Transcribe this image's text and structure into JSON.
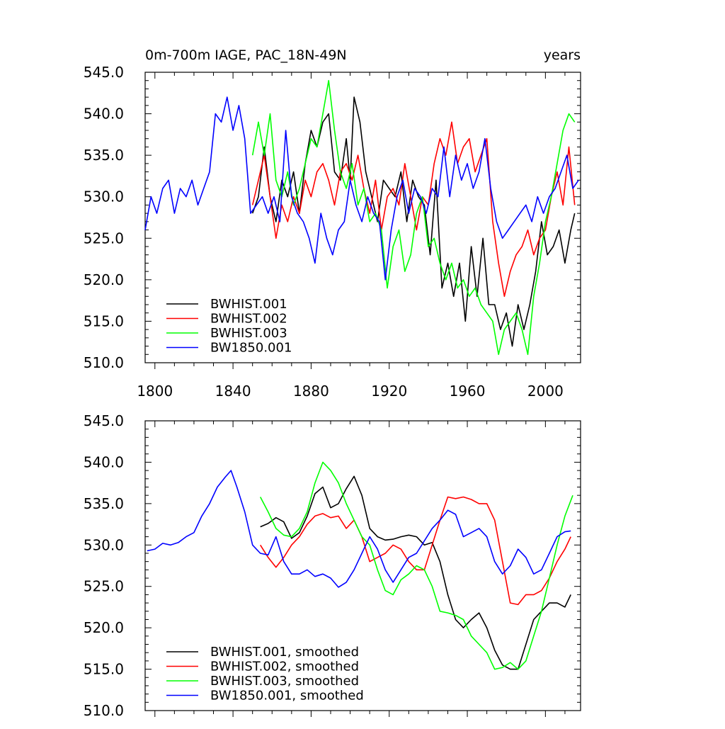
{
  "chart_data": [
    {
      "type": "line",
      "title": "0m-700m IAGE, PAC_18N-49N",
      "title_right": "years",
      "xlabel": "",
      "ylabel": "",
      "xlim": [
        1795,
        2018
      ],
      "ylim": [
        510.0,
        545.0
      ],
      "xticks": [
        1800,
        1840,
        1880,
        1920,
        1960,
        2000
      ],
      "yticks": [
        "510.0",
        "515.0",
        "520.0",
        "525.0",
        "530.0",
        "535.0",
        "540.0",
        "545.0"
      ],
      "legend_position": "bottom-left",
      "series": [
        {
          "name": "BWHIST.001",
          "color": "#000000",
          "x": [
            1850,
            1853,
            1856,
            1859,
            1862,
            1865,
            1868,
            1871,
            1874,
            1877,
            1880,
            1883,
            1886,
            1889,
            1892,
            1895,
            1898,
            1900,
            1902,
            1905,
            1908,
            1911,
            1914,
            1917,
            1920,
            1923,
            1926,
            1929,
            1932,
            1935,
            1938,
            1941,
            1944,
            1947,
            1950,
            1953,
            1956,
            1959,
            1962,
            1965,
            1968,
            1971,
            1974,
            1977,
            1980,
            1983,
            1986,
            1989,
            1992,
            1995,
            1998,
            2001,
            2004,
            2007,
            2010,
            2013,
            2015
          ],
          "values": [
            528,
            530,
            536,
            530,
            527,
            532,
            530,
            533,
            528,
            534,
            538,
            536,
            539,
            540,
            533,
            532,
            537,
            532,
            542,
            539,
            533,
            530,
            527,
            532,
            531,
            530,
            533,
            527,
            532,
            530,
            529,
            523,
            532,
            519,
            522,
            518,
            522,
            515,
            524,
            518,
            525,
            517,
            517,
            514,
            516,
            512,
            517,
            514,
            517,
            521,
            527,
            523,
            524,
            526,
            522,
            526,
            528
          ]
        },
        {
          "name": "BWHIST.002",
          "color": "#ff0000",
          "x": [
            1850,
            1853,
            1856,
            1859,
            1862,
            1865,
            1868,
            1871,
            1874,
            1877,
            1880,
            1883,
            1886,
            1889,
            1892,
            1895,
            1898,
            1901,
            1904,
            1907,
            1910,
            1913,
            1916,
            1919,
            1922,
            1925,
            1928,
            1931,
            1934,
            1937,
            1940,
            1943,
            1946,
            1949,
            1952,
            1955,
            1958,
            1961,
            1964,
            1967,
            1970,
            1973,
            1976,
            1979,
            1982,
            1985,
            1988,
            1991,
            1994,
            1997,
            2000,
            2003,
            2006,
            2009,
            2012,
            2015
          ],
          "values": [
            529,
            532,
            535,
            530,
            525,
            529,
            527,
            530,
            528,
            532,
            530,
            533,
            534,
            532,
            529,
            533,
            534,
            532,
            535,
            531,
            528,
            532,
            526,
            530,
            531,
            529,
            534,
            530,
            526,
            530,
            529,
            534,
            537,
            535,
            539,
            534,
            536,
            537,
            533,
            535,
            537,
            527,
            522,
            518,
            521,
            523,
            524,
            526,
            523,
            525,
            526,
            530,
            533,
            529,
            536,
            529
          ]
        },
        {
          "name": "BWHIST.003",
          "color": "#00ff00",
          "x": [
            1850,
            1853,
            1856,
            1859,
            1862,
            1865,
            1868,
            1871,
            1874,
            1877,
            1880,
            1883,
            1886,
            1889,
            1892,
            1895,
            1898,
            1901,
            1904,
            1907,
            1910,
            1913,
            1916,
            1919,
            1922,
            1925,
            1928,
            1931,
            1934,
            1937,
            1940,
            1943,
            1946,
            1949,
            1952,
            1955,
            1958,
            1961,
            1964,
            1967,
            1970,
            1973,
            1976,
            1979,
            1982,
            1985,
            1988,
            1991,
            1994,
            1997,
            2000,
            2003,
            2006,
            2009,
            2012,
            2015
          ],
          "values": [
            535,
            539,
            535,
            540,
            532,
            530,
            533,
            529,
            531,
            534,
            537,
            536,
            540,
            544,
            538,
            533,
            531,
            534,
            529,
            531,
            527,
            528,
            526,
            519,
            524,
            526,
            521,
            523,
            528,
            530,
            524,
            525,
            522,
            520,
            522,
            519,
            520,
            518,
            519,
            517,
            516,
            515,
            511,
            514,
            515,
            516,
            514,
            511,
            518,
            522,
            527,
            530,
            534,
            538,
            540,
            539
          ]
        },
        {
          "name": "BW1850.001",
          "color": "#0000ff",
          "x": [
            1795,
            1798,
            1801,
            1804,
            1807,
            1810,
            1813,
            1816,
            1819,
            1822,
            1825,
            1828,
            1831,
            1834,
            1837,
            1840,
            1843,
            1846,
            1849,
            1852,
            1855,
            1858,
            1861,
            1864,
            1867,
            1870,
            1873,
            1876,
            1879,
            1882,
            1885,
            1888,
            1891,
            1894,
            1897,
            1900,
            1903,
            1906,
            1909,
            1912,
            1915,
            1918,
            1921,
            1924,
            1927,
            1930,
            1933,
            1936,
            1939,
            1942,
            1945,
            1948,
            1951,
            1954,
            1957,
            1960,
            1963,
            1966,
            1969,
            1972,
            1975,
            1978,
            1981,
            1984,
            1987,
            1990,
            1993,
            1996,
            1999,
            2002,
            2005,
            2008,
            2011,
            2014,
            2017
          ],
          "values": [
            526,
            530,
            528,
            531,
            532,
            528,
            531,
            530,
            532,
            529,
            531,
            533,
            540,
            539,
            542,
            538,
            541,
            537,
            528,
            529,
            530,
            528,
            530,
            527,
            538,
            530,
            528,
            527,
            525,
            522,
            528,
            525,
            523,
            526,
            527,
            532,
            529,
            527,
            530,
            528,
            527,
            520,
            526,
            530,
            532,
            528,
            531,
            530,
            528,
            531,
            530,
            536,
            530,
            535,
            532,
            534,
            531,
            533,
            537,
            531,
            527,
            525,
            526,
            527,
            528,
            529,
            527,
            530,
            528,
            530,
            531,
            533,
            535,
            531,
            532
          ]
        }
      ]
    },
    {
      "type": "line",
      "title": "",
      "xlabel": "",
      "ylabel": "",
      "xlim": [
        1795,
        2018
      ],
      "ylim": [
        510.0,
        545.0
      ],
      "xticks": [
        1800,
        1840,
        1880,
        1920,
        1960,
        2000
      ],
      "yticks": [
        "510.0",
        "515.0",
        "520.0",
        "525.0",
        "530.0",
        "535.0",
        "540.0",
        "545.0"
      ],
      "legend_position": "bottom-left",
      "series": [
        {
          "name": "BWHIST.001, smoothed",
          "color": "#000000",
          "x": [
            1854,
            1858,
            1862,
            1866,
            1870,
            1874,
            1878,
            1882,
            1886,
            1890,
            1894,
            1898,
            1902,
            1906,
            1910,
            1914,
            1918,
            1922,
            1926,
            1930,
            1934,
            1938,
            1942,
            1946,
            1950,
            1954,
            1958,
            1962,
            1966,
            1970,
            1974,
            1978,
            1982,
            1986,
            1990,
            1994,
            1998,
            2002,
            2006,
            2010,
            2013
          ],
          "values": [
            532.2,
            532.6,
            533.3,
            532.8,
            530.8,
            531.5,
            533.5,
            536.2,
            537.0,
            534.5,
            535.0,
            536.8,
            538.3,
            536.0,
            532.0,
            531.0,
            530.6,
            530.7,
            531.0,
            531.2,
            531.0,
            530.0,
            530.3,
            528.0,
            524.0,
            521.0,
            520.0,
            521.0,
            521.8,
            520.0,
            517.3,
            515.5,
            515.0,
            515.0,
            518.0,
            521.0,
            522.0,
            523.0,
            523.0,
            522.5,
            524.0
          ]
        },
        {
          "name": "BWHIST.002, smoothed",
          "color": "#ff0000",
          "x": [
            1854,
            1858,
            1862,
            1866,
            1870,
            1874,
            1878,
            1882,
            1886,
            1890,
            1894,
            1898,
            1902,
            1906,
            1910,
            1914,
            1918,
            1922,
            1926,
            1930,
            1934,
            1938,
            1942,
            1946,
            1950,
            1954,
            1958,
            1962,
            1966,
            1970,
            1974,
            1978,
            1982,
            1986,
            1990,
            1994,
            1998,
            2002,
            2006,
            2010,
            2013
          ],
          "values": [
            530.0,
            528.5,
            527.3,
            528.5,
            530.0,
            531.0,
            532.5,
            533.5,
            533.8,
            533.3,
            533.5,
            532.0,
            533.0,
            531.0,
            528.0,
            528.5,
            529.0,
            530.0,
            529.5,
            528.0,
            527.0,
            527.0,
            530.0,
            533.0,
            535.8,
            535.6,
            535.8,
            535.5,
            535.0,
            535.0,
            533.0,
            528.0,
            523.0,
            522.8,
            524.0,
            524.0,
            524.5,
            526.0,
            528.0,
            529.5,
            531.0
          ]
        },
        {
          "name": "BWHIST.003, smoothed",
          "color": "#00ff00",
          "x": [
            1854,
            1858,
            1862,
            1866,
            1870,
            1874,
            1878,
            1882,
            1886,
            1890,
            1894,
            1898,
            1902,
            1906,
            1910,
            1914,
            1918,
            1922,
            1926,
            1930,
            1934,
            1938,
            1942,
            1946,
            1950,
            1954,
            1958,
            1962,
            1966,
            1970,
            1974,
            1978,
            1982,
            1986,
            1990,
            1994,
            1998,
            2002,
            2006,
            2010,
            2014
          ],
          "values": [
            535.8,
            534.0,
            532.0,
            531.2,
            531.0,
            532.0,
            534.0,
            537.5,
            540.0,
            539.0,
            537.5,
            535.0,
            533.0,
            531.0,
            530.0,
            527.0,
            524.5,
            524.0,
            525.8,
            526.5,
            527.5,
            527.0,
            525.0,
            522.0,
            521.8,
            521.5,
            521.0,
            519.0,
            518.0,
            517.0,
            515.0,
            515.2,
            515.8,
            515.0,
            516.0,
            519.0,
            522.0,
            526.0,
            530.0,
            533.5,
            536.0
          ]
        },
        {
          "name": "BW1850.001, smoothed",
          "color": "#0000ff",
          "x": [
            1796,
            1800,
            1804,
            1808,
            1812,
            1816,
            1820,
            1824,
            1828,
            1832,
            1836,
            1839,
            1842,
            1846,
            1850,
            1854,
            1858,
            1862,
            1866,
            1870,
            1874,
            1878,
            1882,
            1886,
            1890,
            1894,
            1898,
            1902,
            1906,
            1910,
            1914,
            1918,
            1922,
            1926,
            1930,
            1934,
            1938,
            1942,
            1946,
            1950,
            1954,
            1958,
            1962,
            1966,
            1970,
            1974,
            1978,
            1982,
            1986,
            1990,
            1994,
            1998,
            2002,
            2006,
            2010,
            2013
          ],
          "values": [
            529.3,
            529.5,
            530.2,
            530.0,
            530.3,
            531.0,
            531.5,
            533.5,
            535.0,
            537.0,
            538.2,
            539.0,
            537.0,
            534.0,
            530.0,
            529.0,
            528.8,
            531.0,
            528.0,
            526.5,
            526.5,
            527.0,
            526.2,
            526.5,
            526.0,
            524.9,
            525.5,
            527.0,
            529.0,
            531.0,
            529.5,
            527.0,
            525.5,
            527.0,
            528.5,
            529.0,
            530.5,
            532.0,
            533.0,
            534.2,
            533.7,
            531.0,
            531.5,
            532.0,
            531.0,
            528.0,
            526.5,
            527.5,
            529.5,
            528.5,
            526.5,
            527.0,
            529.0,
            531.0,
            531.6,
            531.7
          ]
        }
      ]
    }
  ]
}
